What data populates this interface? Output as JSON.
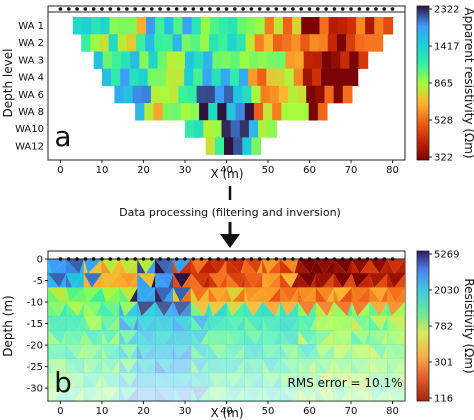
{
  "chart_data": [
    {
      "type": "heatmap",
      "panel_label": "a",
      "title": "",
      "xlabel": "X (m)",
      "ylabel": "Depth level",
      "xlim": [
        -3,
        83
      ],
      "x_ticks": [
        "0",
        "10",
        "20",
        "30",
        "40",
        "50",
        "60",
        "70",
        "80"
      ],
      "y_levels": [
        "WA 1",
        "WA 2",
        "WA 3",
        "WA 4",
        "WA 6",
        "WA 8",
        "WA10",
        "WA12"
      ],
      "x_ranges": [
        [
          3,
          78
        ],
        [
          5,
          76
        ],
        [
          8,
          73
        ],
        [
          10,
          71
        ],
        [
          13,
          69
        ],
        [
          18,
          64
        ],
        [
          30,
          52
        ],
        [
          35,
          47
        ]
      ],
      "colorbar_label": "Apparent resistivity (Ωm)",
      "colorbar_ticks": [
        "2322",
        "1417",
        "865",
        "528",
        "322"
      ],
      "electrodes": {
        "count": 41,
        "from": 0,
        "to": 80
      }
    },
    {
      "type": "heatmap",
      "panel_label": "b",
      "title": "",
      "xlabel": "X (m)",
      "ylabel": "Depth (m)",
      "xlim": [
        -3,
        83
      ],
      "ylim": [
        -33,
        1
      ],
      "x_ticks": [
        "0",
        "10",
        "20",
        "30",
        "40",
        "50",
        "60",
        "70",
        "80"
      ],
      "y_ticks": [
        "0",
        "-5",
        "-10",
        "-15",
        "-20",
        "-25",
        "-30"
      ],
      "colorbar_label": "Resistivity (Ωm)",
      "colorbar_ticks": [
        "5269",
        "2030",
        "782",
        "301",
        "116"
      ],
      "annotation": "RMS error = 10.1%",
      "electrodes": {
        "count": 41,
        "from": 0,
        "to": 80
      }
    }
  ],
  "process": {
    "label": "Data processing (filtering and inversion)"
  },
  "colors": {
    "arrow": "#111111",
    "electrode": "#111111"
  }
}
